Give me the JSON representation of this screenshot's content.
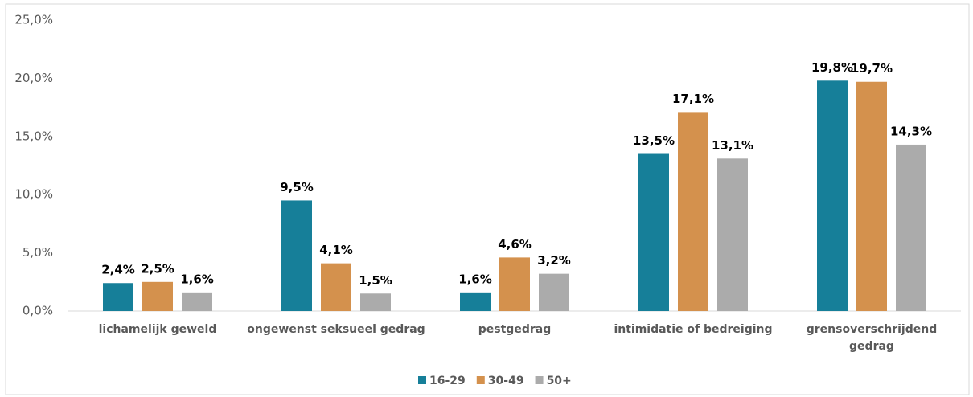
{
  "chart_data": {
    "type": "bar",
    "categories": [
      "lichamelijk geweld",
      "ongewenst seksueel gedrag",
      "pestgedrag",
      "intimidatie of bedreiging",
      "grensoverschrijdend gedrag"
    ],
    "series": [
      {
        "name": "16-29",
        "color": "#167f99",
        "values": [
          2.4,
          9.5,
          1.6,
          13.5,
          19.8
        ],
        "value_labels": [
          "2,4%",
          "9,5%",
          "1,6%",
          "13,5%",
          "19,8%"
        ]
      },
      {
        "name": "30-49",
        "color": "#d4914d",
        "values": [
          2.5,
          4.1,
          4.6,
          17.1,
          19.7
        ],
        "value_labels": [
          "2,5%",
          "4,1%",
          "4,6%",
          "17,1%",
          "19,7%"
        ]
      },
      {
        "name": "50+",
        "color": "#ababab",
        "values": [
          1.6,
          1.5,
          3.2,
          13.1,
          14.3
        ],
        "value_labels": [
          "1,6%",
          "1,5%",
          "3,2%",
          "13,1%",
          "14,3%"
        ]
      }
    ],
    "ylim": [
      0,
      25
    ],
    "yticks": [
      {
        "value": 0,
        "label": "0,0%"
      },
      {
        "value": 5,
        "label": "5,0%"
      },
      {
        "value": 10,
        "label": "10,0%"
      },
      {
        "value": 15,
        "label": "15,0%"
      },
      {
        "value": 20,
        "label": "20,0%"
      },
      {
        "value": 25,
        "label": "25,0%"
      }
    ],
    "legend": "bottom"
  }
}
